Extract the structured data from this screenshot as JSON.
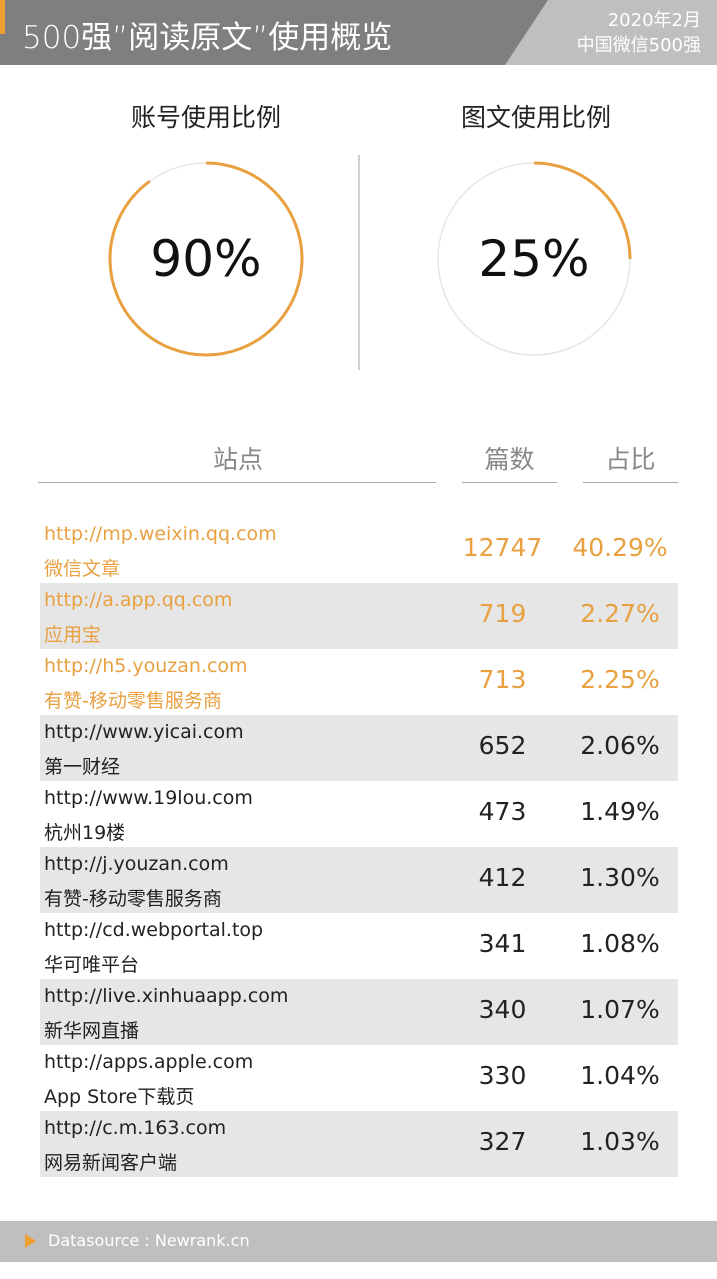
{
  "header": {
    "title": "500强”阅读原文”使用概览",
    "date": "2020年2月",
    "subtitle": "中国微信500强"
  },
  "gauges": [
    {
      "title": "账号使用比例",
      "value_label": "90%",
      "fraction": 0.9
    },
    {
      "title": "图文使用比例",
      "value_label": "25%",
      "fraction": 0.25
    }
  ],
  "colors": {
    "accent": "#e8a040",
    "header_dark": "#7f7f7f",
    "header_light": "#bfbfbf",
    "row_alt": "#e6e6e6"
  },
  "table": {
    "headers": [
      "站点",
      "篇数",
      "占比"
    ],
    "rows": [
      {
        "url": "http://mp.weixin.qq.com",
        "name": "微信文章",
        "count": "12747",
        "pct": "40.29%",
        "highlight": true
      },
      {
        "url": "http://a.app.qq.com",
        "name": "应用宝",
        "count": "719",
        "pct": "2.27%",
        "highlight": true
      },
      {
        "url": "http://h5.youzan.com",
        "name": "有赞-移动零售服务商",
        "count": "713",
        "pct": "2.25%",
        "highlight": true
      },
      {
        "url": "http://www.yicai.com",
        "name": "第一财经",
        "count": "652",
        "pct": "2.06%",
        "highlight": false
      },
      {
        "url": "http://www.19lou.com",
        "name": "杭州19楼",
        "count": "473",
        "pct": "1.49%",
        "highlight": false
      },
      {
        "url": "http://j.youzan.com",
        "name": "有赞-移动零售服务商",
        "count": "412",
        "pct": "1.30%",
        "highlight": false
      },
      {
        "url": "http://cd.webportal.top",
        "name": "华可唯平台",
        "count": "341",
        "pct": "1.08%",
        "highlight": false
      },
      {
        "url": "http://live.xinhuaapp.com",
        "name": "新华网直播",
        "count": "340",
        "pct": "1.07%",
        "highlight": false
      },
      {
        "url": "http://apps.apple.com",
        "name": "App Store下载页",
        "count": "330",
        "pct": "1.04%",
        "highlight": false
      },
      {
        "url": "http://c.m.163.com",
        "name": "网易新闻客户端",
        "count": "327",
        "pct": "1.03%",
        "highlight": false
      }
    ]
  },
  "footer": {
    "text": "Datasource : Newrank.cn"
  }
}
